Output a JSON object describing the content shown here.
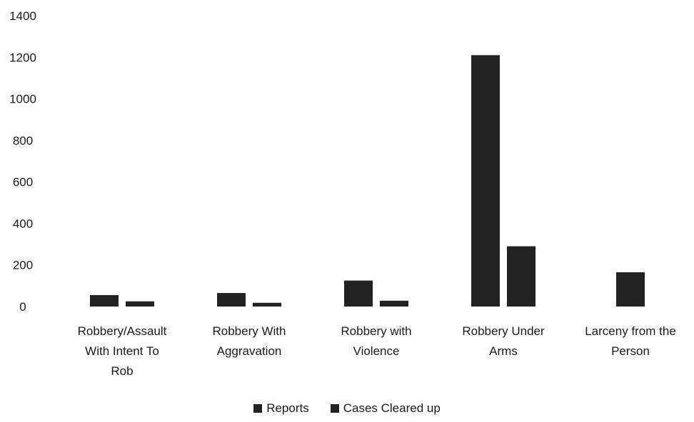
{
  "chart_data": {
    "type": "bar",
    "categories": [
      [
        "Robbery/Assault",
        "With Intent To",
        "Rob"
      ],
      [
        "Robbery With",
        "Aggravation"
      ],
      [
        "Robbery with",
        "Violence"
      ],
      [
        "Robbery Under",
        "Arms"
      ],
      [
        "Larceny from the",
        "Person"
      ]
    ],
    "series": [
      {
        "name": "Reports",
        "values": [
          55,
          65,
          125,
          1210,
          165
        ],
        "color": "#222222"
      },
      {
        "name": "Cases Cleared up",
        "values": [
          25,
          18,
          28,
          290,
          null
        ],
        "color": "#222222"
      }
    ],
    "ylim": [
      0,
      1400
    ],
    "yticks": [
      0,
      200,
      400,
      600,
      800,
      1000,
      1200,
      1400
    ],
    "grid": false,
    "legend_position": "bottom",
    "title": "",
    "xlabel": "",
    "ylabel": ""
  }
}
